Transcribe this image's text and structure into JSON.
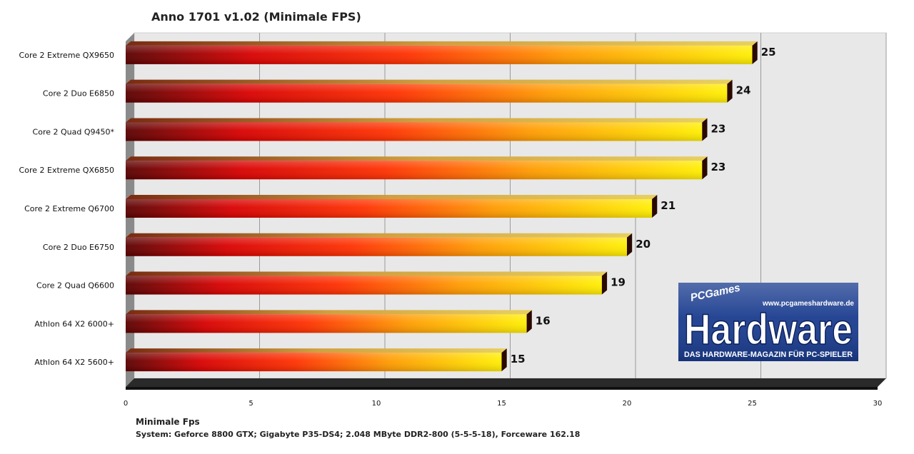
{
  "chart_data": {
    "type": "bar",
    "orientation": "horizontal",
    "title": "Anno 1701 v1.02 (Minimale FPS)",
    "xlabel": "Minimale Fps",
    "footnote": "System: Geforce 8800 GTX; Gigabyte P35-DS4; 2.048 MByte DDR2-800 (5-5-5-18), Forceware 162.18",
    "categories": [
      "Core 2 Extreme QX9650",
      "Core 2 Duo E6850",
      "Core 2 Quad Q9450*",
      "Core 2 Extreme QX6850",
      "Core 2 Extreme Q6700",
      "Core 2 Duo E6750",
      "Core 2 Quad Q6600",
      "Athlon 64 X2 6000+",
      "Athlon 64 X2 5600+"
    ],
    "values": [
      25,
      24,
      23,
      23,
      21,
      20,
      19,
      16,
      15
    ],
    "xlim": [
      0,
      30
    ],
    "xticks": [
      0,
      5,
      10,
      15,
      20,
      25,
      30
    ],
    "grid": true,
    "colors": {
      "bar_start": "#5a0000",
      "bar_mid1": "#e00000",
      "bar_mid2": "#ff6a00",
      "bar_end": "#ffe600",
      "plot_bg": "#eaeaea",
      "wall": "#888888"
    }
  },
  "logo": {
    "brand_small": "PCGames",
    "url": "www.pcgameshardware.de",
    "word": "Hardware",
    "tagline": "DAS HARDWARE-MAGAZIN FÜR PC-SPIELER",
    "bg_color": "#1a3c8f"
  }
}
